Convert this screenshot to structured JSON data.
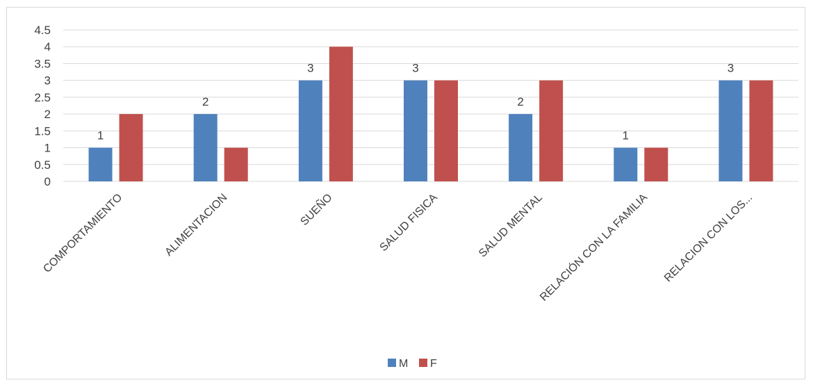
{
  "chart_data": {
    "type": "bar",
    "categories": [
      "COMPORTAMIENTO",
      "ALIMENTACION",
      "SUEÑO",
      "SALUD FISICA",
      "SALUD MENTAL",
      "RELACIÓN CON LA FAMILIA",
      "RELACION CON LOS..."
    ],
    "series": [
      {
        "name": "M",
        "values": [
          1,
          2,
          3,
          3,
          2,
          1,
          3
        ],
        "color": "#4f81bd",
        "data_labels": [
          "1",
          "2",
          "3",
          "3",
          "2",
          "1",
          "3"
        ]
      },
      {
        "name": "F",
        "values": [
          2,
          1,
          4,
          3,
          3,
          1,
          3
        ],
        "color": "#c0504d"
      }
    ],
    "ylim": [
      0,
      4.5
    ],
    "yticks": [
      "0",
      "0.5",
      "1",
      "1.5",
      "2",
      "2.5",
      "3",
      "3.5",
      "4",
      "4.5"
    ],
    "grid": true,
    "legend_position": "bottom"
  }
}
